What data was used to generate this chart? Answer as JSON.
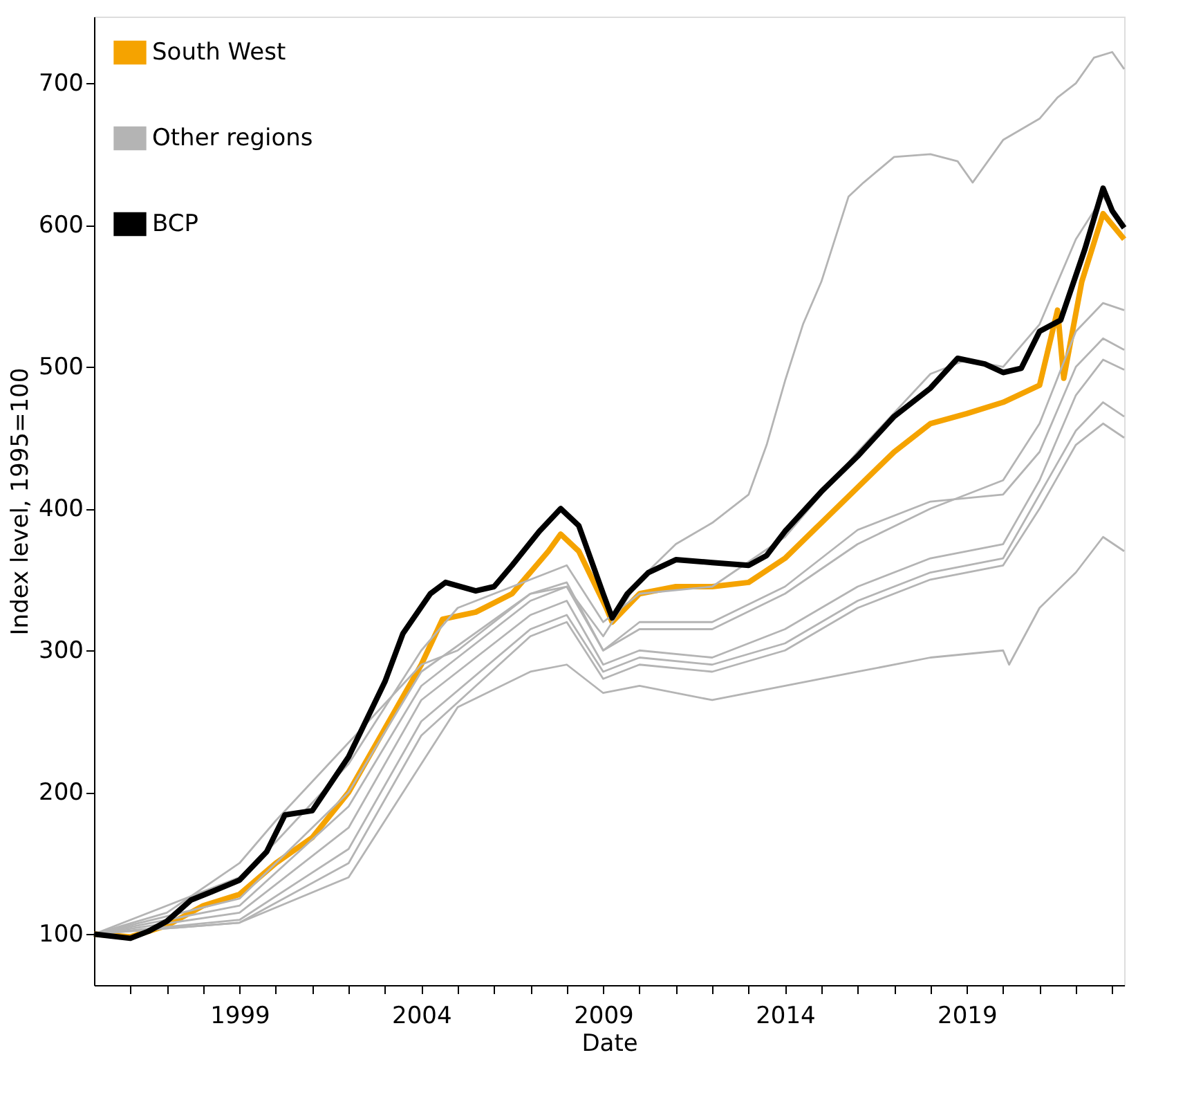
{
  "chart_data": {
    "type": "line",
    "xlabel": "Date",
    "ylabel": "Index level, 1995=100",
    "xlim": [
      "1995-01",
      "2023-05"
    ],
    "ylim": [
      64,
      747
    ],
    "xticks": [
      {
        "value": "1996",
        "label": null
      },
      {
        "value": "1997",
        "label": null
      },
      {
        "value": "1998",
        "label": null
      },
      "1999",
      {
        "value": "2000",
        "label": null
      },
      {
        "value": "2001",
        "label": null
      },
      {
        "value": "2002",
        "label": null
      },
      {
        "value": "2003",
        "label": null
      },
      "2004",
      {
        "value": "2005",
        "label": null
      },
      {
        "value": "2006",
        "label": null
      },
      {
        "value": "2007",
        "label": null
      },
      {
        "value": "2008",
        "label": null
      },
      "2009",
      {
        "value": "2010",
        "label": null
      },
      {
        "value": "2011",
        "label": null
      },
      {
        "value": "2012",
        "label": null
      },
      {
        "value": "2013",
        "label": null
      },
      "2014",
      {
        "value": "2015",
        "label": null
      },
      {
        "value": "2016",
        "label": null
      },
      {
        "value": "2017",
        "label": null
      },
      {
        "value": "2018",
        "label": null
      },
      "2019",
      {
        "value": "2020",
        "label": null
      },
      {
        "value": "2021",
        "label": null
      },
      {
        "value": "2022",
        "label": null
      },
      {
        "value": "2023",
        "label": null
      }
    ],
    "yticks": [
      100,
      200,
      300,
      400,
      500,
      600,
      700
    ],
    "grid": false,
    "legend": "top left",
    "marker": "none",
    "line_style": "solid",
    "series": [
      {
        "name": "South West",
        "color": "#f5a300",
        "x": [
          "1995-01",
          "1996-01",
          "1997-01",
          "1998-01",
          "1999-01",
          "2000-01",
          "2001-01",
          "2002-01",
          "2003-01",
          "2004-01",
          "2004-08",
          "2005-07",
          "2006-07",
          "2007-07",
          "2007-11",
          "2008-05",
          "2009-02",
          "2009-04",
          "2010-01",
          "2011-01",
          "2012-01",
          "2013-01",
          "2014-01",
          "2015-01",
          "2016-01",
          "2017-01",
          "2018-01",
          "2019-01",
          "2020-01",
          "2021-01",
          "2021-07",
          "2021-09",
          "2022-03",
          "2022-10",
          "2023-05"
        ],
        "values": [
          100,
          98,
          106,
          120,
          128,
          150,
          168,
          200,
          245,
          290,
          322,
          327,
          340,
          370,
          382,
          370,
          330,
          320,
          340,
          345,
          345,
          348,
          365,
          390,
          415,
          440,
          460,
          467,
          475,
          487,
          540,
          492,
          560,
          608,
          590
        ]
      },
      {
        "name": "Other regions",
        "color": "#b4b4b4",
        "x": [
          "1995-01",
          "1997-01",
          "1999-01",
          "2000-01",
          "2002-01",
          "2004-01",
          "2005-01",
          "2007-01",
          "2008-01",
          "2009-01",
          "2010-01",
          "2011-01",
          "2012-01",
          "2013-01",
          "2013-07",
          "2014-01",
          "2014-07",
          "2015-01",
          "2015-10",
          "2016-03",
          "2017-01",
          "2018-01",
          "2018-10",
          "2019-03",
          "2020-01",
          "2021-01",
          "2021-07",
          "2022-01",
          "2022-07",
          "2023-01",
          "2023-05"
        ],
        "values": [
          100,
          115,
          150,
          180,
          235,
          290,
          300,
          340,
          345,
          310,
          350,
          375,
          390,
          410,
          445,
          490,
          530,
          560,
          620,
          630,
          648,
          650,
          645,
          630,
          660,
          675,
          690,
          700,
          718,
          722,
          710
        ]
      },
      {
        "color": "#b4b4b4",
        "x": [
          "1995-01",
          "1999-01",
          "2000-01",
          "2002-01",
          "2004-01",
          "2005-01",
          "2007-01",
          "2008-01",
          "2009-01",
          "2010-01",
          "2012-01",
          "2014-01",
          "2016-01",
          "2018-01",
          "2019-01",
          "2020-01",
          "2021-01",
          "2022-01",
          "2022-10",
          "2023-05"
        ],
        "values": [
          100,
          140,
          165,
          220,
          300,
          330,
          350,
          360,
          320,
          340,
          345,
          380,
          440,
          495,
          505,
          500,
          530,
          590,
          620,
          600
        ]
      },
      {
        "color": "#b4b4b4",
        "x": [
          "1995-01",
          "1999-01",
          "2002-01",
          "2004-01",
          "2007-01",
          "2008-01",
          "2009-01",
          "2010-01",
          "2012-01",
          "2014-01",
          "2016-01",
          "2018-01",
          "2020-01",
          "2021-01",
          "2022-01",
          "2022-10",
          "2023-05"
        ],
        "values": [
          100,
          120,
          190,
          275,
          335,
          345,
          300,
          315,
          315,
          340,
          375,
          400,
          420,
          460,
          525,
          545,
          540
        ]
      },
      {
        "color": "#b4b4b4",
        "x": [
          "1995-01",
          "1999-01",
          "2002-01",
          "2004-01",
          "2007-01",
          "2008-01",
          "2009-01",
          "2010-01",
          "2012-01",
          "2014-01",
          "2016-01",
          "2018-01",
          "2020-01",
          "2021-01",
          "2022-01",
          "2022-10",
          "2023-05"
        ],
        "values": [
          100,
          125,
          200,
          285,
          340,
          348,
          300,
          320,
          320,
          345,
          385,
          405,
          410,
          440,
          500,
          520,
          512
        ]
      },
      {
        "color": "#b4b4b4",
        "x": [
          "1995-01",
          "1999-01",
          "2002-01",
          "2004-01",
          "2007-01",
          "2008-01",
          "2009-01",
          "2010-01",
          "2012-01",
          "2014-01",
          "2016-01",
          "2018-01",
          "2020-01",
          "2021-01",
          "2022-01",
          "2022-10",
          "2023-05"
        ],
        "values": [
          100,
          115,
          175,
          265,
          325,
          335,
          290,
          300,
          295,
          315,
          345,
          365,
          375,
          420,
          480,
          505,
          498
        ]
      },
      {
        "color": "#b4b4b4",
        "x": [
          "1995-01",
          "1999-01",
          "2002-01",
          "2004-01",
          "2007-01",
          "2008-01",
          "2009-01",
          "2010-01",
          "2012-01",
          "2014-01",
          "2016-01",
          "2018-01",
          "2020-01",
          "2021-01",
          "2022-01",
          "2022-10",
          "2023-05"
        ],
        "values": [
          100,
          110,
          160,
          250,
          315,
          325,
          285,
          295,
          290,
          305,
          335,
          355,
          365,
          410,
          455,
          475,
          465
        ]
      },
      {
        "color": "#b4b4b4",
        "x": [
          "1995-01",
          "1999-01",
          "2002-01",
          "2004-01",
          "2007-01",
          "2008-01",
          "2009-01",
          "2010-01",
          "2012-01",
          "2014-01",
          "2016-01",
          "2018-01",
          "2020-01",
          "2021-01",
          "2022-01",
          "2022-10",
          "2023-05"
        ],
        "values": [
          100,
          108,
          150,
          240,
          310,
          320,
          280,
          290,
          285,
          300,
          330,
          350,
          360,
          400,
          445,
          460,
          450
        ]
      },
      {
        "color": "#b4b4b4",
        "x": [
          "1995-01",
          "1999-01",
          "2002-01",
          "2004-01",
          "2005-01",
          "2007-01",
          "2008-01",
          "2009-01",
          "2010-01",
          "2012-01",
          "2014-01",
          "2016-01",
          "2018-01",
          "2020-01",
          "2020-03",
          "2021-01",
          "2022-01",
          "2022-10",
          "2023-05"
        ],
        "values": [
          100,
          108,
          140,
          220,
          260,
          285,
          290,
          270,
          275,
          265,
          275,
          285,
          295,
          300,
          290,
          330,
          355,
          380,
          370
        ]
      },
      {
        "name": "BCP",
        "color": "#000000",
        "x": [
          "1995-01",
          "1996-01",
          "1996-07",
          "1997-01",
          "1997-09",
          "1998-04",
          "1999-01",
          "1999-10",
          "2000-04",
          "2001-01",
          "2002-01",
          "2003-01",
          "2003-07",
          "2004-04",
          "2004-09",
          "2005-07",
          "2006-01",
          "2006-07",
          "2007-04",
          "2007-11",
          "2008-05",
          "2009-01",
          "2009-04",
          "2009-09",
          "2010-04",
          "2011-01",
          "2012-01",
          "2013-01",
          "2013-07",
          "2014-01",
          "2015-01",
          "2016-01",
          "2017-01",
          "2018-01",
          "2018-10",
          "2019-07",
          "2020-01",
          "2020-07",
          "2021-01",
          "2021-08",
          "2022-04",
          "2022-10",
          "2023-01",
          "2023-05"
        ],
        "values": [
          100,
          97,
          102,
          109,
          124,
          130,
          138,
          158,
          184,
          187,
          225,
          278,
          312,
          340,
          348,
          342,
          345,
          360,
          384,
          400,
          388,
          340,
          323,
          340,
          355,
          364,
          362,
          360,
          367,
          384,
          412,
          437,
          465,
          485,
          506,
          502,
          496,
          499,
          525,
          533,
          583,
          626,
          610,
          598
        ]
      }
    ]
  }
}
